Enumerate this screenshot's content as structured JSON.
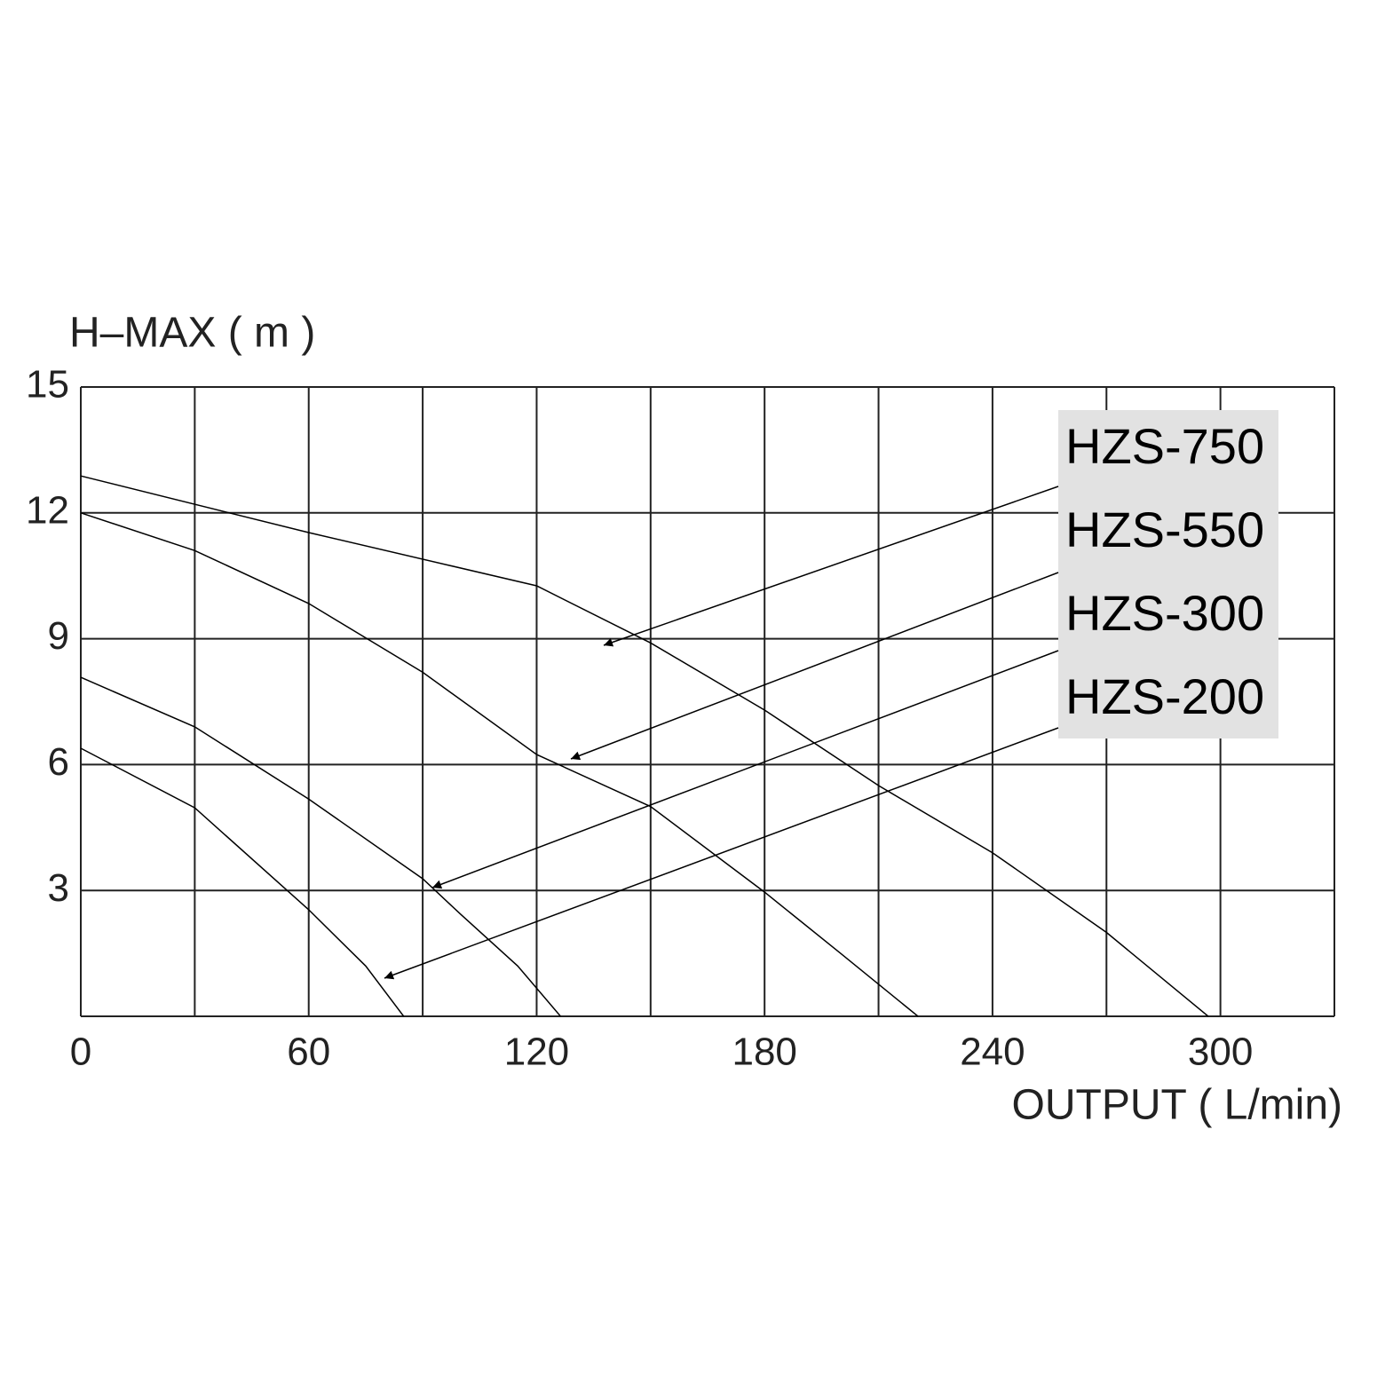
{
  "chart_data": {
    "type": "line",
    "y_label": "H–MAX ( m )",
    "x_label": "OUTPUT ( L/min)",
    "xlim": [
      0,
      330
    ],
    "xticks": [
      0,
      60,
      120,
      180,
      240,
      300
    ],
    "x_minor_grid": [
      30,
      90,
      150,
      210,
      270,
      330
    ],
    "ylim": [
      0,
      15
    ],
    "yticks": [
      3,
      6,
      9,
      12,
      15
    ],
    "grid": true,
    "series": [
      {
        "name": "HZS-750",
        "color": "#000000",
        "x": [
          0,
          60,
          120,
          150,
          180,
          210,
          240,
          270,
          296.8
        ],
        "values": [
          12.88,
          11.53,
          10.26,
          8.9,
          7.3,
          5.5,
          3.9,
          2.0,
          0
        ]
      },
      {
        "name": "HZS-550",
        "color": "#000000",
        "x": [
          0,
          30,
          60,
          90,
          120,
          150,
          180,
          200,
          220.4
        ],
        "values": [
          12,
          11.1,
          9.84,
          8.2,
          6.24,
          5.0,
          2.96,
          1.5,
          0
        ]
      },
      {
        "name": "HZS-300",
        "color": "#000000",
        "x": [
          0,
          30,
          60,
          90,
          100,
          115,
          126.3
        ],
        "values": [
          8.08,
          6.9,
          5.18,
          3.28,
          2.43,
          1.2,
          0
        ]
      },
      {
        "name": "HZS-200",
        "color": "#000000",
        "x": [
          0,
          30,
          60,
          75,
          85
        ],
        "values": [
          6.39,
          4.97,
          2.54,
          1.2,
          0
        ]
      }
    ]
  }
}
